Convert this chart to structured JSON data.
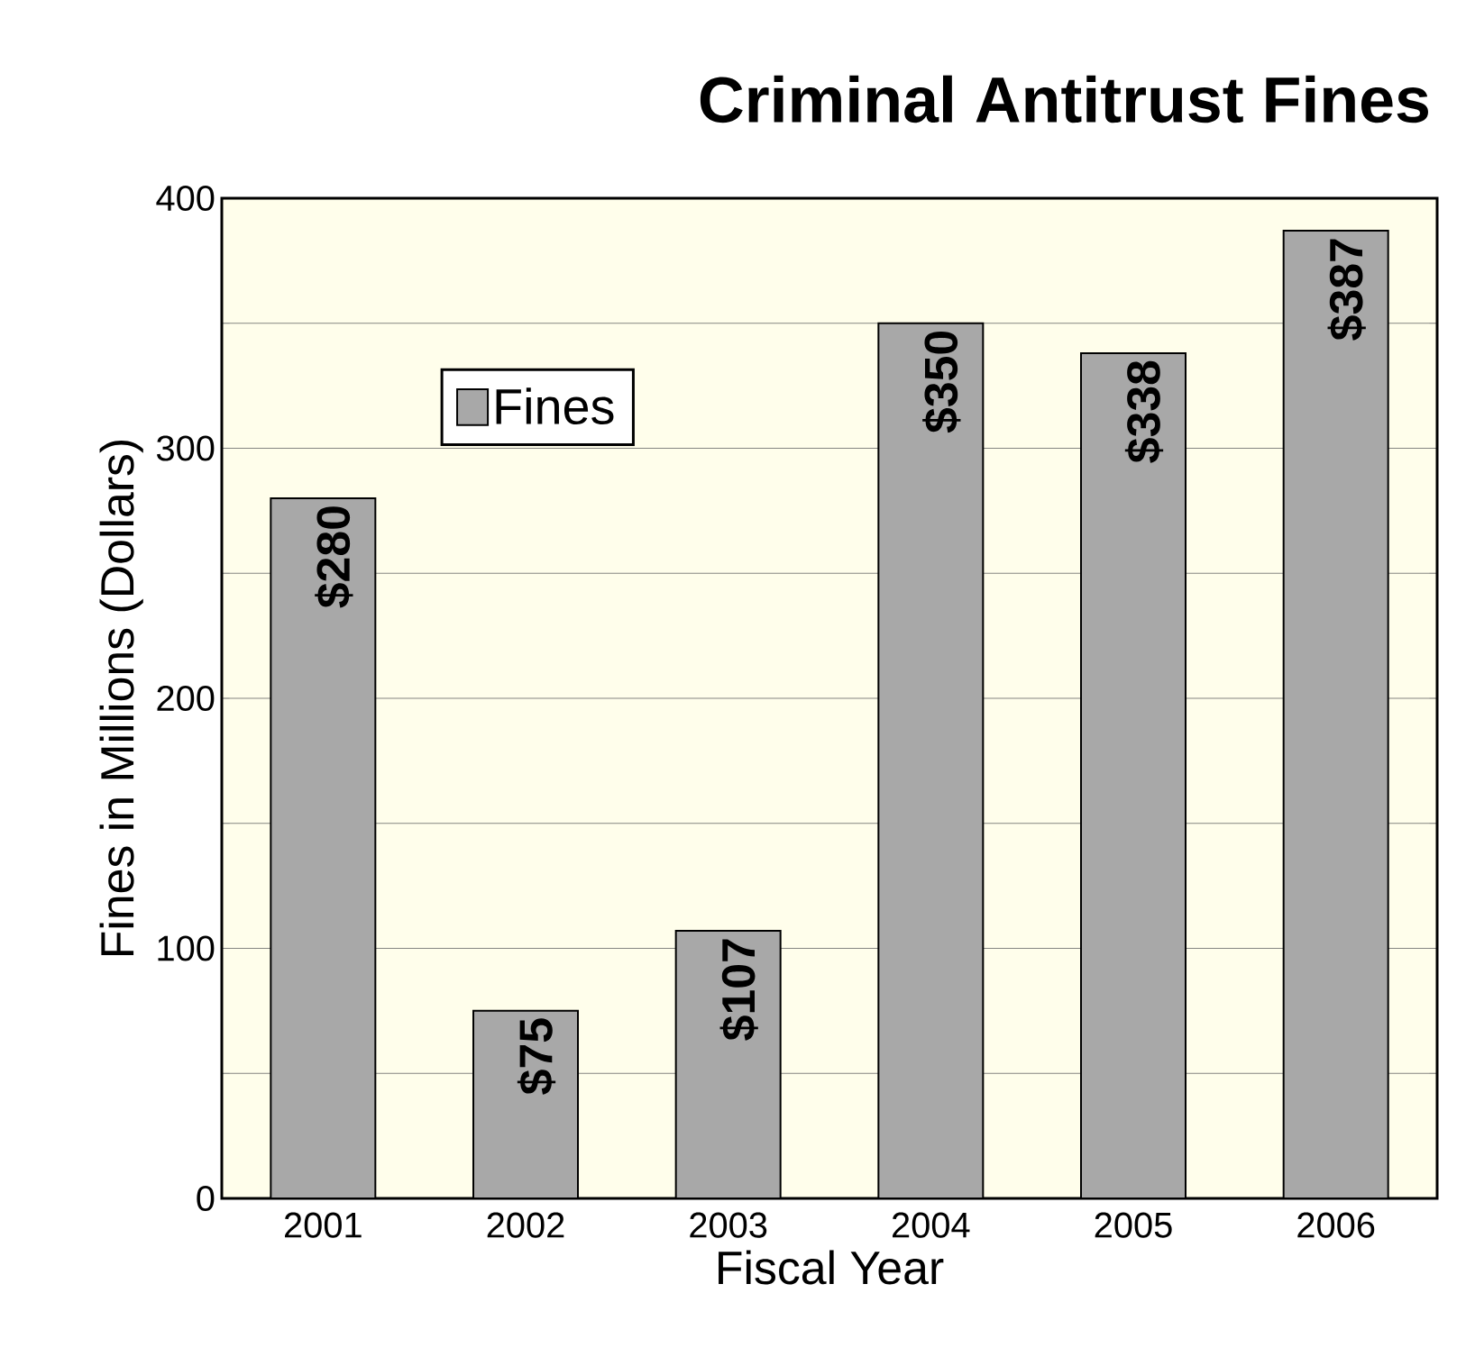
{
  "chart_data": {
    "type": "bar",
    "title": "Criminal Antitrust Fines",
    "xlabel": "Fiscal Year",
    "ylabel": "Fines in Millions (Dollars)",
    "categories": [
      "2001",
      "2002",
      "2003",
      "2004",
      "2005",
      "2006"
    ],
    "series": [
      {
        "name": "Fines",
        "color": "#a8a8a8",
        "values": [
          280,
          75,
          107,
          350,
          338,
          387
        ],
        "value_labels": [
          "$280",
          "$75",
          "$107",
          "$350",
          "$338",
          "$387"
        ]
      }
    ],
    "ylim": [
      0,
      400
    ],
    "yticks": [
      0,
      {
        "value": 50,
        "label": null
      },
      100,
      {
        "value": 150,
        "label": null
      },
      200,
      {
        "value": 250,
        "label": null
      },
      300,
      {
        "value": 350,
        "label": null
      },
      400
    ],
    "grid": "y",
    "legend": "top left"
  }
}
